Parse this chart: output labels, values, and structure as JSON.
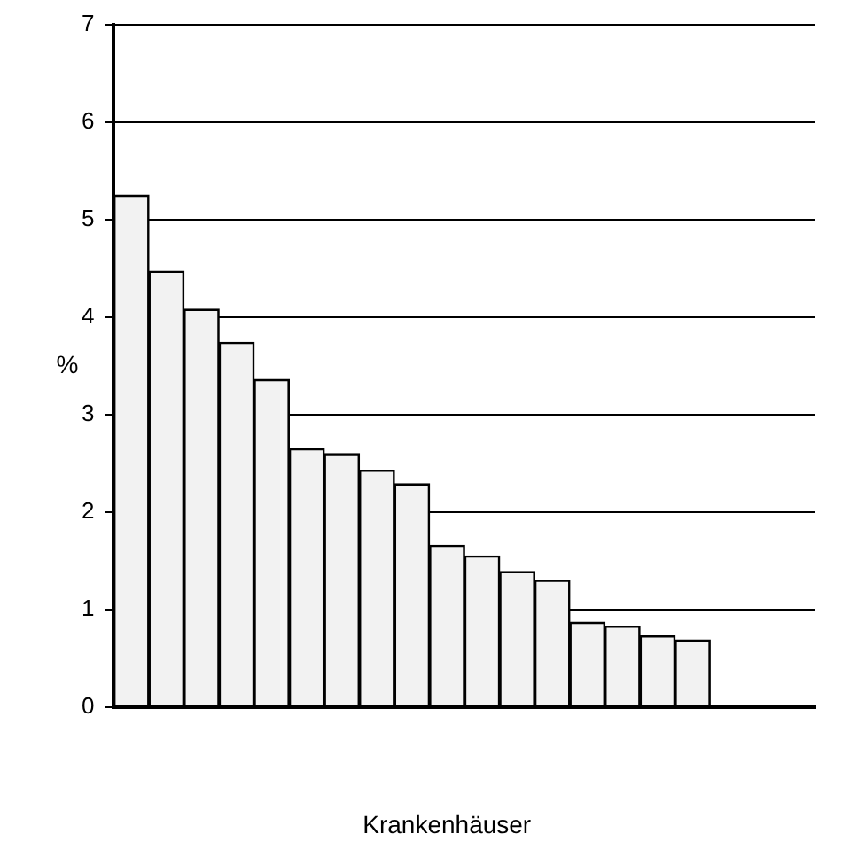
{
  "chart_data": {
    "type": "bar",
    "xlabel": "Krankenhäuser",
    "ylabel": "%",
    "categories": [
      null,
      null,
      null,
      null,
      null,
      null,
      null,
      null,
      null,
      null,
      null,
      null,
      null,
      null,
      null,
      null,
      null,
      null,
      null,
      null
    ],
    "values": [
      5.25,
      4.47,
      4.08,
      3.74,
      3.36,
      2.65,
      2.6,
      2.43,
      2.29,
      1.66,
      1.55,
      1.39,
      1.3,
      0.87,
      0.83,
      0.73,
      0.69,
      null,
      null,
      null
    ],
    "color": "#f2f2f2",
    "ylim": [
      0,
      7
    ],
    "yticks": [
      0,
      1,
      2,
      3,
      4,
      5,
      6,
      7
    ],
    "grid": "y",
    "tick_labels": "y"
  }
}
